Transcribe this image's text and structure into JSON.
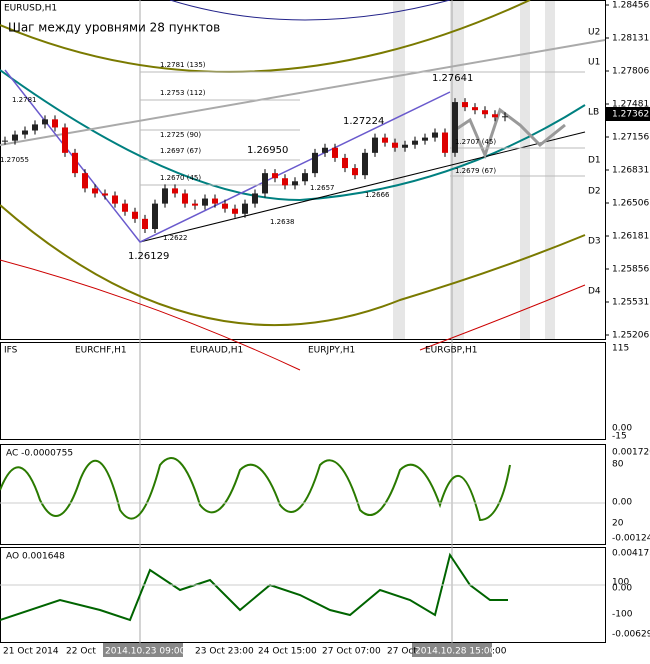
{
  "window": {
    "symbol": "EURUSD,H1",
    "caption": "Шаг между уровнями 28 пунктов",
    "current_price": 1.27362
  },
  "price_axis": [
    1.28456,
    1.28131,
    1.27806,
    1.27481,
    1.27156,
    1.26831,
    1.26506,
    1.26181,
    1.25856,
    1.25531,
    1.25206
  ],
  "levels": [
    "U2",
    "U1",
    "LB",
    "D1",
    "D2",
    "D3",
    "D4"
  ],
  "annotations": [
    "1.2781 (135)",
    "1.2753 (112)",
    "1.2725 (90)",
    "1.2697 (67)",
    "1.2670 (45)",
    "1.2707 (45)",
    "1.2679 (67)",
    "1.27641",
    "1.27224",
    "1.26950",
    "1.2657",
    "1.2666",
    "1.2638",
    "1.2622",
    "1.26129",
    "1.2781",
    "1.27055"
  ],
  "closes": [
    1.2712,
    1.2718,
    1.2722,
    1.2728,
    1.2733,
    1.2725,
    1.27,
    1.268,
    1.2665,
    1.266,
    1.2658,
    1.265,
    1.2642,
    1.2635,
    1.2625,
    1.265,
    1.2665,
    1.266,
    1.265,
    1.2648,
    1.2655,
    1.265,
    1.2645,
    1.264,
    1.265,
    1.266,
    1.268,
    1.2675,
    1.2668,
    1.2672,
    1.268,
    1.27,
    1.2705,
    1.2695,
    1.2685,
    1.2678,
    1.27,
    1.2715,
    1.271,
    1.2705,
    1.2708,
    1.2712,
    1.2715,
    1.272,
    1.27,
    1.275,
    1.2745,
    1.2742,
    1.2738,
    1.2735,
    1.2736
  ],
  "ifs": {
    "label": "IFS",
    "pairs": [
      "EURCHF,H1",
      "EURAUD,H1",
      "EURJPY,H1",
      "EURGBP,H1"
    ],
    "axis": [
      "115",
      "0.00",
      "-15"
    ]
  },
  "ac": {
    "label": "AC -0.0000755",
    "axis": [
      "0.001720",
      "80",
      "0.00",
      "20",
      "-0.001248"
    ]
  },
  "ao": {
    "label": "AO 0.001648",
    "axis": [
      "0.004173",
      "100",
      "0.00",
      "-100",
      "-0.00629"
    ]
  },
  "time_axis": [
    "21 Oct 2014",
    "22 Oct",
    "2014.10.23 09:00",
    "23 Oct 23:00",
    "24 Oct 15:00",
    "27 Oct 07:00",
    "27 Oct",
    "2014.10.28 15:00",
    ":00"
  ]
}
